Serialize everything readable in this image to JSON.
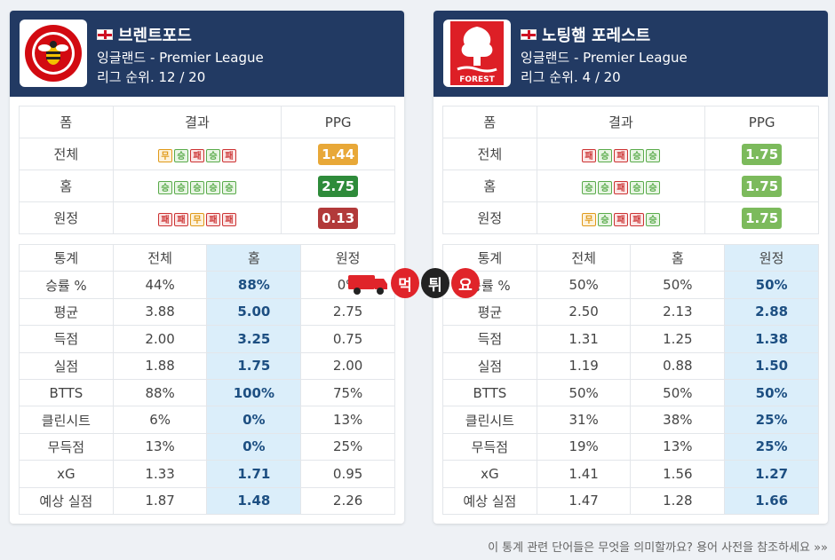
{
  "teams": [
    {
      "name": "브렌트포드",
      "league": "잉글랜드 - Premier League",
      "rank": "리그 순위. 12 / 20",
      "logo_color": "#d20a11",
      "form_headers": [
        "폼",
        "결과",
        "PPG"
      ],
      "form_rows": [
        {
          "label": "전체",
          "results": [
            "무",
            "승",
            "패",
            "승",
            "패"
          ],
          "ppg": "1.44",
          "ppg_color": "#e8a838"
        },
        {
          "label": "홈",
          "results": [
            "승",
            "승",
            "승",
            "승",
            "승"
          ],
          "ppg": "2.75",
          "ppg_color": "#2e8b3a"
        },
        {
          "label": "원정",
          "results": [
            "패",
            "패",
            "무",
            "패",
            "패"
          ],
          "ppg": "0.13",
          "ppg_color": "#b23a3a"
        }
      ],
      "stats_headers": [
        "통계",
        "전체",
        "홈",
        "원정"
      ],
      "highlight_col": 2,
      "stats_rows": [
        {
          "label": "승률 %",
          "values": [
            "44%",
            "88%",
            "0%"
          ]
        },
        {
          "label": "평균",
          "values": [
            "3.88",
            "5.00",
            "2.75"
          ]
        },
        {
          "label": "득점",
          "values": [
            "2.00",
            "3.25",
            "0.75"
          ]
        },
        {
          "label": "실점",
          "values": [
            "1.88",
            "1.75",
            "2.00"
          ]
        },
        {
          "label": "BTTS",
          "values": [
            "88%",
            "100%",
            "75%"
          ]
        },
        {
          "label": "클린시트",
          "values": [
            "6%",
            "0%",
            "13%"
          ]
        },
        {
          "label": "무득점",
          "values": [
            "13%",
            "0%",
            "25%"
          ]
        },
        {
          "label": "xG",
          "values": [
            "1.33",
            "1.71",
            "0.95"
          ]
        },
        {
          "label": "예상 실점",
          "values": [
            "1.87",
            "1.48",
            "2.26"
          ]
        }
      ]
    },
    {
      "name": "노팅햄 포레스트",
      "league": "잉글랜드 - Premier League",
      "rank": "리그 순위. 4 / 20",
      "logo_color": "#dd1f26",
      "logo_text": "FOREST",
      "form_headers": [
        "폼",
        "결과",
        "PPG"
      ],
      "form_rows": [
        {
          "label": "전체",
          "results": [
            "패",
            "승",
            "패",
            "승",
            "승"
          ],
          "ppg": "1.75",
          "ppg_color": "#7cba5c"
        },
        {
          "label": "홈",
          "results": [
            "승",
            "승",
            "패",
            "승",
            "승"
          ],
          "ppg": "1.75",
          "ppg_color": "#7cba5c"
        },
        {
          "label": "원정",
          "results": [
            "무",
            "승",
            "패",
            "패",
            "승"
          ],
          "ppg": "1.75",
          "ppg_color": "#7cba5c"
        }
      ],
      "stats_headers": [
        "통계",
        "전체",
        "홈",
        "원정"
      ],
      "highlight_col": 3,
      "stats_rows": [
        {
          "label": "승률 %",
          "values": [
            "50%",
            "50%",
            "50%"
          ]
        },
        {
          "label": "평균",
          "values": [
            "2.50",
            "2.13",
            "2.88"
          ]
        },
        {
          "label": "득점",
          "values": [
            "1.31",
            "1.25",
            "1.38"
          ]
        },
        {
          "label": "실점",
          "values": [
            "1.19",
            "0.88",
            "1.50"
          ]
        },
        {
          "label": "BTTS",
          "values": [
            "50%",
            "50%",
            "50%"
          ]
        },
        {
          "label": "클린시트",
          "values": [
            "31%",
            "38%",
            "25%"
          ]
        },
        {
          "label": "무득점",
          "values": [
            "19%",
            "13%",
            "25%"
          ]
        },
        {
          "label": "xG",
          "values": [
            "1.41",
            "1.56",
            "1.27"
          ]
        },
        {
          "label": "예상 실점",
          "values": [
            "1.47",
            "1.28",
            "1.66"
          ]
        }
      ]
    }
  ],
  "watermark": {
    "chars": [
      "먹",
      "튀",
      "요"
    ],
    "colors": [
      "#e0242a",
      "#222222",
      "#e0242a"
    ]
  },
  "footer": "이 통계 관련 단어들은 무엇을 의미할까요? 용어 사전을 참조하세요 »»"
}
